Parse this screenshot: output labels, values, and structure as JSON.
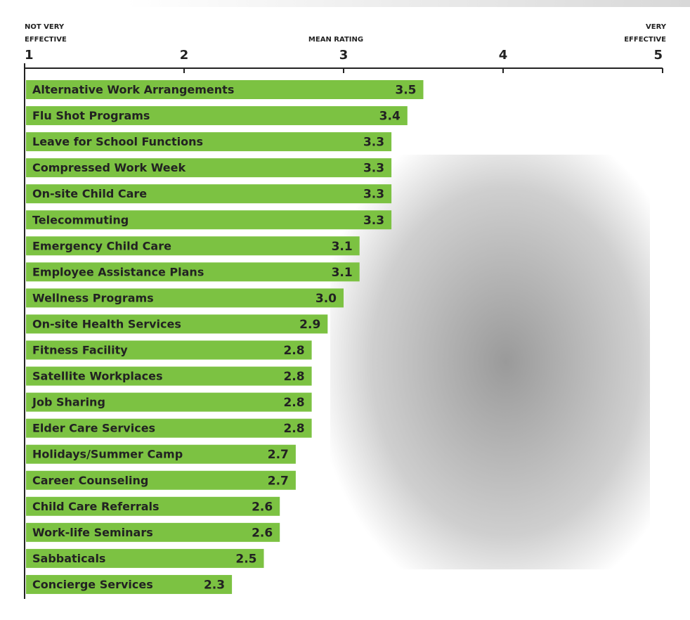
{
  "chart_data": {
    "type": "hbar",
    "xlabel": "MEAN RATING",
    "x_min_label": [
      "NOT VERY",
      "EFFECTIVE"
    ],
    "x_max_label": [
      "VERY",
      "EFFECTIVE"
    ],
    "xlim": [
      1,
      5
    ],
    "xticks": [
      1,
      2,
      3,
      4,
      5
    ],
    "color": "#7cc242",
    "categories": [
      "Alternative Work Arrangements",
      "Flu Shot Programs",
      "Leave for School Functions",
      "Compressed Work Week",
      "On-site Child Care",
      "Telecommuting",
      "Emergency Child Care",
      "Employee Assistance Plans",
      "Wellness Programs",
      "On-site Health Services",
      "Fitness Facility",
      "Satellite Workplaces",
      "Job Sharing",
      "Elder Care Services",
      "Holidays/Summer Camp",
      "Career Counseling",
      "Child Care Referrals",
      "Work-life Seminars",
      "Sabbaticals",
      "Concierge Services"
    ],
    "values": [
      3.5,
      3.4,
      3.3,
      3.3,
      3.3,
      3.3,
      3.1,
      3.1,
      3.0,
      2.9,
      2.8,
      2.8,
      2.8,
      2.8,
      2.7,
      2.7,
      2.6,
      2.6,
      2.5,
      2.3
    ],
    "value_labels": [
      "3.5",
      "3.4",
      "3.3",
      "3.3",
      "3.3",
      "3.3",
      "3.1",
      "3.1",
      "3.0",
      "2.9",
      "2.8",
      "2.8",
      "2.8",
      "2.8",
      "2.7",
      "2.7",
      "2.6",
      "2.6",
      "2.5",
      "2.3"
    ]
  }
}
